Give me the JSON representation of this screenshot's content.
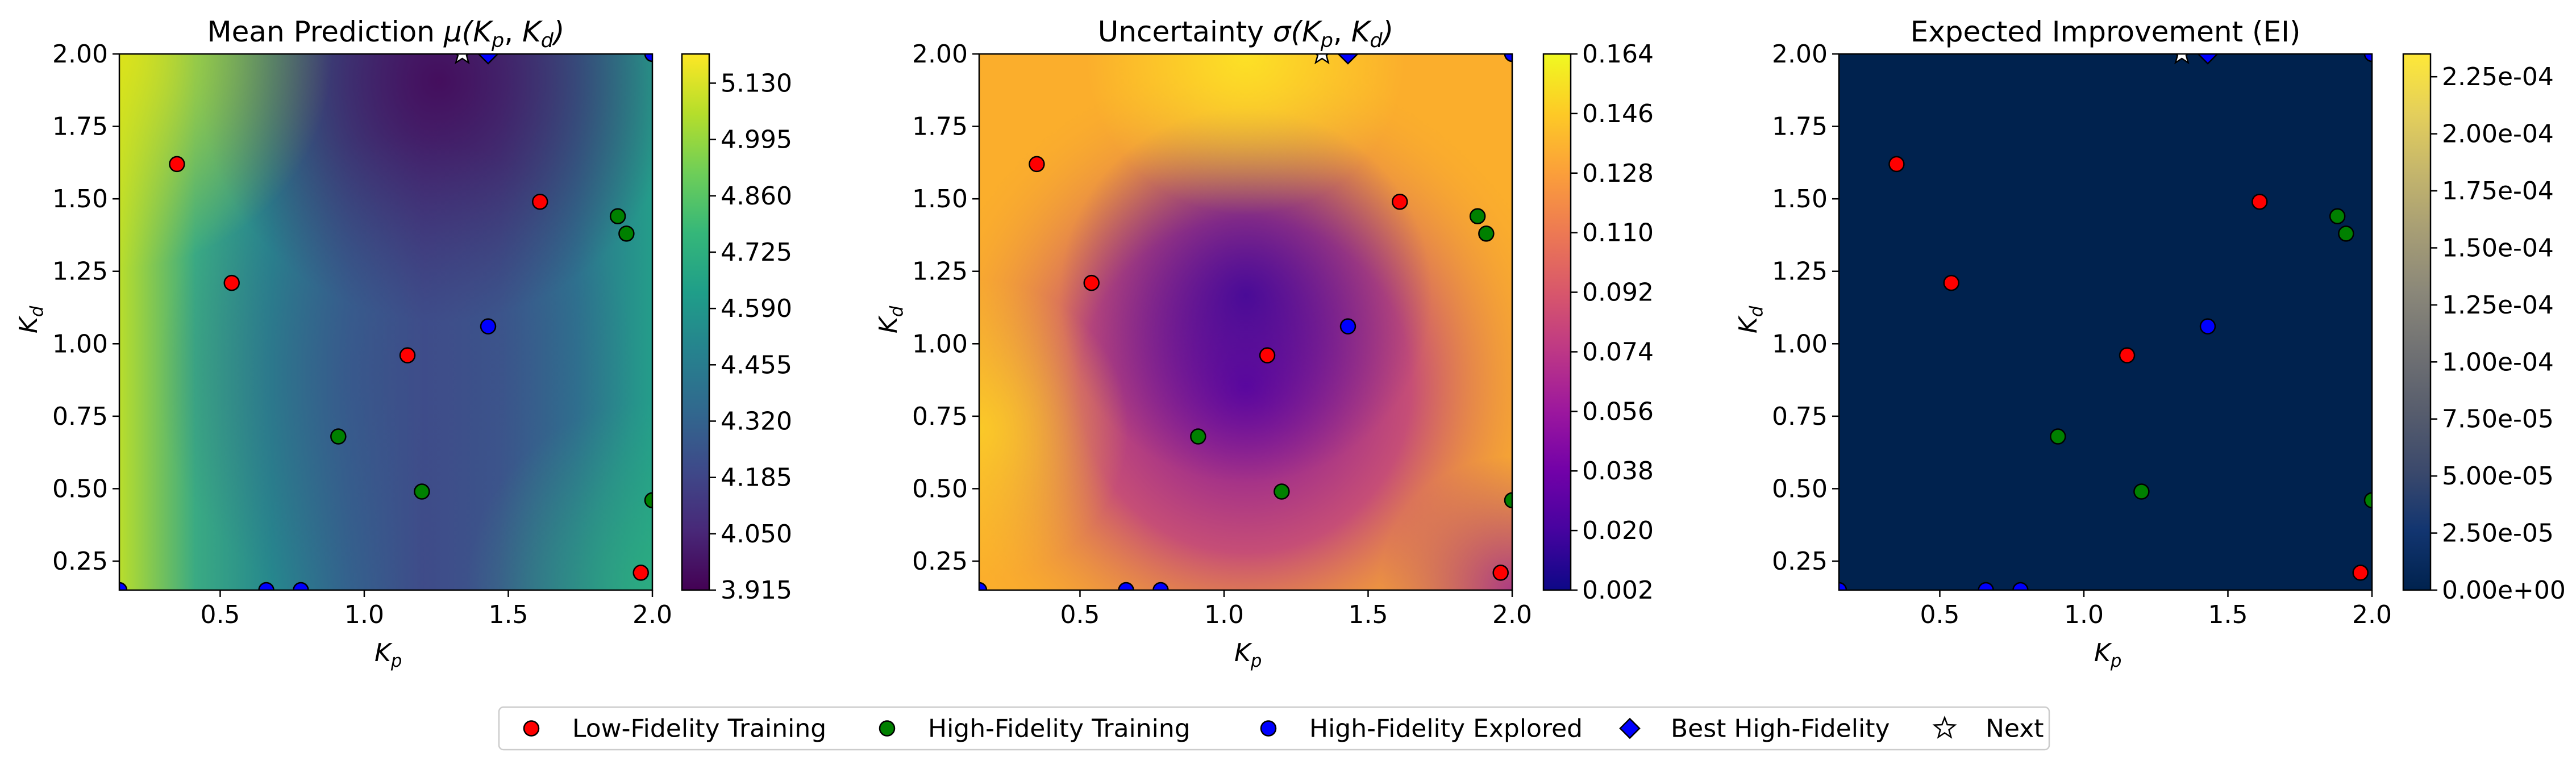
{
  "chart_data": [
    {
      "type": "heatmap",
      "title": "Mean Prediction μ(Kp, Kd)",
      "title_parts": [
        "Mean Prediction ",
        "μ(",
        "K",
        "p",
        ", ",
        "K",
        "d",
        ")"
      ],
      "xlabel": {
        "main": "K",
        "sub": "p"
      },
      "ylabel": {
        "main": "K",
        "sub": "d"
      },
      "xlim": [
        0.15,
        2.0
      ],
      "ylim": [
        0.15,
        2.0
      ],
      "colormap": "viridis",
      "colorbar": {
        "min": 3.915,
        "max": 5.2,
        "ticks": [
          "3.915",
          "4.050",
          "4.185",
          "4.320",
          "4.455",
          "4.590",
          "4.725",
          "4.860",
          "4.995",
          "5.130"
        ]
      },
      "show_next_star": true
    },
    {
      "type": "heatmap",
      "title": "Uncertainty σ(Kp, Kd)",
      "title_parts": [
        "Uncertainty ",
        "σ(",
        "K",
        "p",
        ", ",
        "K",
        "d",
        ")"
      ],
      "xlabel": {
        "main": "K",
        "sub": "p"
      },
      "ylabel": {
        "main": "K",
        "sub": "d"
      },
      "xlim": [
        0.15,
        2.0
      ],
      "ylim": [
        0.15,
        2.0
      ],
      "colormap": "plasma",
      "colorbar": {
        "min": 0.002,
        "max": 0.164,
        "ticks": [
          "0.002",
          "0.020",
          "0.038",
          "0.056",
          "0.074",
          "0.092",
          "0.110",
          "0.128",
          "0.146",
          "0.164"
        ]
      },
      "show_next_star": true
    },
    {
      "type": "heatmap",
      "title": "Expected Improvement (EI)",
      "title_parts": [
        "Expected Improvement (EI)"
      ],
      "xlabel": {
        "main": "K",
        "sub": "p"
      },
      "ylabel": {
        "main": "K",
        "sub": "d"
      },
      "xlim": [
        0.15,
        2.0
      ],
      "ylim": [
        0.15,
        2.0
      ],
      "colormap": "cividis",
      "colorbar": {
        "min": 0,
        "max": 0.000235,
        "ticks": [
          "0.00e+00",
          "2.50e-05",
          "5.00e-05",
          "7.50e-05",
          "1.00e-04",
          "1.25e-04",
          "1.50e-04",
          "1.75e-04",
          "2.00e-04",
          "2.25e-04"
        ]
      },
      "show_next_star": true
    }
  ],
  "shared": {
    "xticks": [
      0.5,
      1.0,
      1.5,
      2.0
    ],
    "xtick_labels": [
      "0.5",
      "1.0",
      "1.5",
      "2.0"
    ],
    "yticks": [
      0.25,
      0.5,
      0.75,
      1.0,
      1.25,
      1.5,
      1.75,
      2.0
    ],
    "ytick_labels": [
      "0.25",
      "0.50",
      "0.75",
      "1.00",
      "1.25",
      "1.50",
      "1.75",
      "2.00"
    ],
    "points": {
      "low_fidelity": [
        [
          0.35,
          1.62
        ],
        [
          0.54,
          1.21
        ],
        [
          1.15,
          0.96
        ],
        [
          1.61,
          1.49
        ],
        [
          1.96,
          0.21
        ]
      ],
      "high_fidelity": [
        [
          0.91,
          0.68
        ],
        [
          1.2,
          0.49
        ],
        [
          1.88,
          1.44
        ],
        [
          1.91,
          1.38
        ],
        [
          2.0,
          0.46
        ]
      ],
      "high_fidelity_explored": [
        [
          0.15,
          0.15
        ],
        [
          0.66,
          0.15
        ],
        [
          0.78,
          0.15
        ],
        [
          1.43,
          1.06
        ],
        [
          2.0,
          2.0
        ]
      ],
      "best_high_fidelity": [
        [
          1.43,
          2.0
        ]
      ],
      "next": [
        [
          1.34,
          2.0
        ]
      ]
    },
    "colors": {
      "low_fidelity": "#ff0000",
      "high_fidelity": "#008000",
      "high_fidelity_explored": "#0000ff",
      "best_high_fidelity": "#0000ff",
      "next": "#ffffff",
      "marker_edge": "#000000"
    }
  },
  "legend": {
    "placement": "bottom-center",
    "entries": [
      {
        "key": "low_fidelity",
        "label": "Low-Fidelity Training",
        "marker": "circle"
      },
      {
        "key": "high_fidelity",
        "label": "High-Fidelity Training",
        "marker": "circle"
      },
      {
        "key": "high_fidelity_explored",
        "label": "High-Fidelity Explored",
        "marker": "circle"
      },
      {
        "key": "best_high_fidelity",
        "label": "Best High-Fidelity",
        "marker": "diamond"
      },
      {
        "key": "next",
        "label": "Next",
        "marker": "star"
      }
    ]
  }
}
